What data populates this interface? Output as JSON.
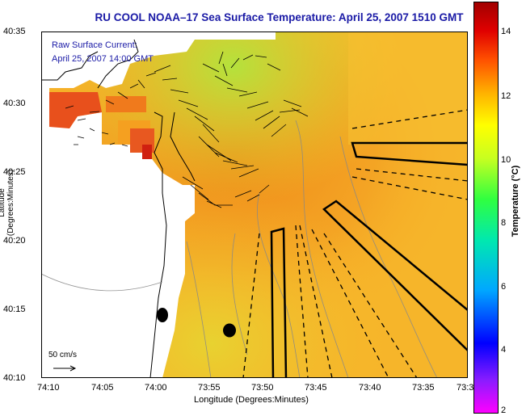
{
  "title": "RU COOL  NOAA–17  Sea Surface Temperature:  April 25, 2007 1510 GMT",
  "overlay": {
    "line1": "Raw Surface Current:",
    "line2": "April 25, 2007 14:00 GMT"
  },
  "axes": {
    "ylabel": "Latitude (Degrees:Minutes)",
    "xlabel": "Longitude (Degrees:Minutes)",
    "yticks": [
      "40:35",
      "40:30",
      "40:25",
      "40:20",
      "40:15",
      "40:10"
    ],
    "xticks": [
      "74:10",
      "74:05",
      "74:00",
      "73:55",
      "73:50",
      "73:45",
      "73:40",
      "73:35",
      "73:3"
    ]
  },
  "colorbar": {
    "label": "Temperature (°C)",
    "ticks": [
      "14",
      "12",
      "10",
      "8",
      "6",
      "4",
      "2"
    ],
    "colors": [
      "#ff00ff",
      "#7a00ff",
      "#0000ff",
      "#00a0ff",
      "#00e8c0",
      "#00ff60",
      "#a0ff20",
      "#ffff00",
      "#ffa000",
      "#ff4000",
      "#d00000",
      "#a00000"
    ]
  },
  "scale_label": "50 cm/s",
  "map_colors": {
    "water_main": "#f7b428",
    "water_warm": "#f08a1a",
    "water_cool": "#b8e23a",
    "land": "#ffffff",
    "coast": "#000000"
  }
}
